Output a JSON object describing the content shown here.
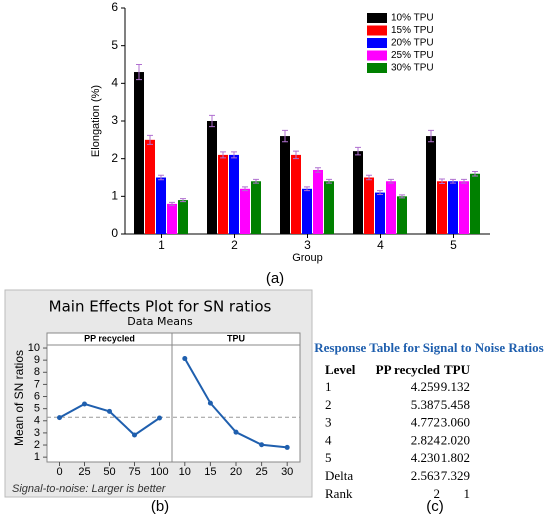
{
  "chart_data": [
    {
      "type": "bar",
      "x_label": "Group",
      "y_label": "Elongation (%)",
      "categories": [
        "1",
        "2",
        "3",
        "4",
        "5"
      ],
      "series": [
        {
          "name": "10% TPU",
          "color": "#000000",
          "values": [
            4.3,
            3.0,
            2.6,
            2.2,
            2.6
          ],
          "errors": [
            0.2,
            0.15,
            0.15,
            0.1,
            0.15
          ]
        },
        {
          "name": "15% TPU",
          "color": "#ff0000",
          "values": [
            2.5,
            2.1,
            2.1,
            1.5,
            1.4
          ],
          "errors": [
            0.12,
            0.08,
            0.1,
            0.06,
            0.06
          ]
        },
        {
          "name": "20% TPU",
          "color": "#0000ff",
          "values": [
            1.5,
            2.1,
            1.2,
            1.1,
            1.4
          ],
          "errors": [
            0.06,
            0.08,
            0.05,
            0.05,
            0.05
          ]
        },
        {
          "name": "25% TPU",
          "color": "#ff00ff",
          "values": [
            0.8,
            1.2,
            1.7,
            1.4,
            1.4
          ],
          "errors": [
            0.04,
            0.05,
            0.06,
            0.05,
            0.05
          ]
        },
        {
          "name": "30% TPU",
          "color": "#008000",
          "values": [
            0.9,
            1.4,
            1.4,
            1.0,
            1.6
          ],
          "errors": [
            0.04,
            0.05,
            0.05,
            0.04,
            0.06
          ]
        }
      ],
      "ylim": [
        0,
        6
      ],
      "yticks": [
        0,
        1,
        2,
        3,
        4,
        5,
        6
      ],
      "legend": "top-right"
    },
    {
      "type": "line",
      "title": "Main Effects Plot for SN ratios",
      "subtitle": "Data Means",
      "y_label": "Mean of SN ratios",
      "footnote": "Signal-to-noise: Larger is better",
      "color": "#1f5fae",
      "mean_line": 4.29,
      "ylim": [
        0.6,
        10.25
      ],
      "yticks": [
        1,
        2,
        3,
        4,
        5,
        6,
        7,
        8,
        9,
        10
      ],
      "panels": [
        {
          "title": "PP recycled",
          "categories": [
            "0",
            "25",
            "50",
            "75",
            "100"
          ],
          "values": [
            4.259,
            5.387,
            4.772,
            2.824,
            4.23
          ]
        },
        {
          "title": "TPU",
          "categories": [
            "10",
            "15",
            "20",
            "25",
            "30"
          ],
          "values": [
            9.132,
            5.458,
            3.06,
            2.02,
            1.802
          ]
        }
      ]
    }
  ],
  "table": {
    "title": "Response Table for Signal to Noise Ratios",
    "header": [
      "Level",
      "PP recycled",
      "TPU"
    ],
    "rows": [
      [
        "1",
        "4.259",
        "9.132"
      ],
      [
        "2",
        "5.387",
        "5.458"
      ],
      [
        "3",
        "4.772",
        "3.060"
      ],
      [
        "4",
        "2.824",
        "2.020"
      ],
      [
        "5",
        "4.230",
        "1.802"
      ],
      [
        "Delta",
        "2.563",
        "7.329"
      ],
      [
        "Rank",
        "2",
        "1"
      ]
    ]
  },
  "panel_labels": [
    "(a)",
    "(b)",
    "(c)"
  ]
}
